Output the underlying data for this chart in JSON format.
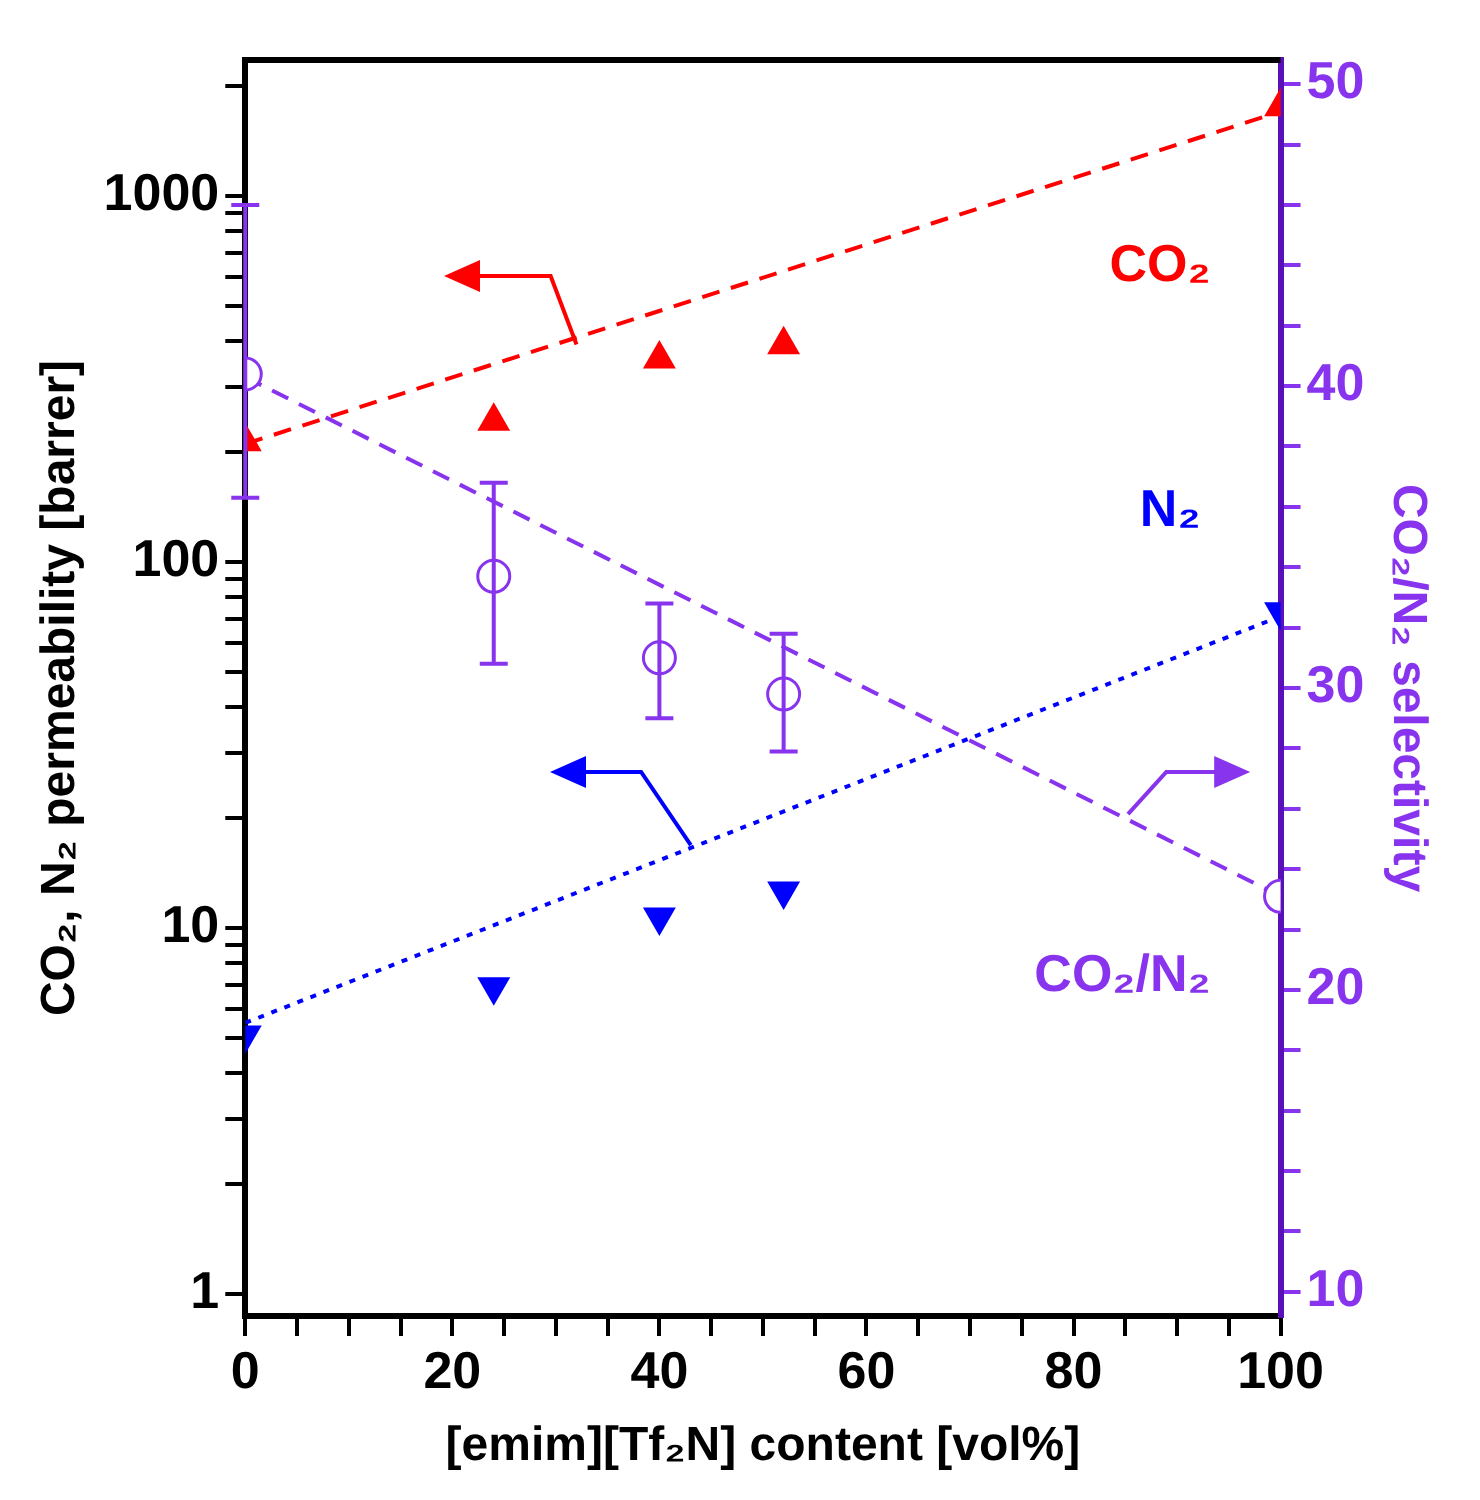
{
  "chart_data": {
    "type": "scatter",
    "xlabel": "[emim][Tf₂N] content [vol%]",
    "ylabel": "CO₂, N₂ permeability [barrer]",
    "y2label": "CO₂/N₂ selectivity",
    "xlim": [
      0,
      100
    ],
    "xticks": [
      0,
      {
        "value": 5,
        "label": null
      },
      {
        "value": 10,
        "label": null
      },
      {
        "value": 15,
        "label": null
      },
      20,
      {
        "value": 25,
        "label": null
      },
      {
        "value": 30,
        "label": null
      },
      {
        "value": 35,
        "label": null
      },
      40,
      {
        "value": 45,
        "label": null
      },
      {
        "value": 50,
        "label": null
      },
      {
        "value": 55,
        "label": null
      },
      60,
      {
        "value": 65,
        "label": null
      },
      {
        "value": 70,
        "label": null
      },
      {
        "value": 75,
        "label": null
      },
      80,
      {
        "value": 85,
        "label": null
      },
      {
        "value": 90,
        "label": null
      },
      {
        "value": 95,
        "label": null
      },
      100
    ],
    "ylim": [
      0.87,
      2350
    ],
    "yticks": [
      1,
      {
        "value": 2,
        "label": null
      },
      {
        "value": 3,
        "label": null
      },
      {
        "value": 4,
        "label": null
      },
      {
        "value": 5,
        "label": null
      },
      {
        "value": 6,
        "label": null
      },
      {
        "value": 7,
        "label": null
      },
      {
        "value": 8,
        "label": null
      },
      {
        "value": 9,
        "label": null
      },
      10,
      {
        "value": 20,
        "label": null
      },
      {
        "value": 30,
        "label": null
      },
      {
        "value": 40,
        "label": null
      },
      {
        "value": 50,
        "label": null
      },
      {
        "value": 60,
        "label": null
      },
      {
        "value": 70,
        "label": null
      },
      {
        "value": 80,
        "label": null
      },
      {
        "value": 90,
        "label": null
      },
      100,
      {
        "value": 200,
        "label": null
      },
      {
        "value": 300,
        "label": null
      },
      {
        "value": 400,
        "label": null
      },
      {
        "value": 500,
        "label": null
      },
      {
        "value": 600,
        "label": null
      },
      {
        "value": 700,
        "label": null
      },
      {
        "value": 800,
        "label": null
      },
      {
        "value": 900,
        "label": null
      },
      1000,
      {
        "value": 2000,
        "label": null
      }
    ],
    "y2lim": [
      9.2,
      50.8
    ],
    "y2ticks": [
      10,
      {
        "value": 12,
        "label": null
      },
      {
        "value": 14,
        "label": null
      },
      {
        "value": 16,
        "label": null
      },
      {
        "value": 18,
        "label": null
      },
      20,
      {
        "value": 22,
        "label": null
      },
      {
        "value": 24,
        "label": null
      },
      {
        "value": 26,
        "label": null
      },
      {
        "value": 28,
        "label": null
      },
      30,
      {
        "value": 32,
        "label": null
      },
      {
        "value": 34,
        "label": null
      },
      {
        "value": 36,
        "label": null
      },
      {
        "value": 38,
        "label": null
      },
      40,
      {
        "value": 42,
        "label": null
      },
      {
        "value": 44,
        "label": null
      },
      {
        "value": 46,
        "label": null
      },
      {
        "value": 48,
        "label": null
      },
      50
    ],
    "log": "y",
    "grid": false,
    "legend": false,
    "series": [
      {
        "name": "CO₂",
        "type": "scatter",
        "marker": "triangle",
        "color": "#ff0000",
        "x": [
          0,
          24,
          40,
          52,
          100
        ],
        "values": [
          213,
          242,
          358,
          392,
          1750
        ]
      },
      {
        "name": "N₂",
        "type": "scatter",
        "marker": "triangle-down",
        "color": "#0000ff",
        "x": [
          0,
          24,
          40,
          52,
          100
        ],
        "values": [
          5.1,
          6.9,
          10.7,
          12.6,
          73
        ]
      },
      {
        "name": "CO₂/N₂",
        "type": "scatter",
        "marker": "circle",
        "axis": "y2",
        "color": "#8833ee",
        "x": [
          0,
          24,
          40,
          52,
          100
        ],
        "values": [
          40.4,
          33.7,
          31.0,
          29.8,
          23.1
        ],
        "errors": [
          [
            36.3,
            46.0
          ],
          [
            30.8,
            36.8
          ],
          [
            29.0,
            32.8
          ],
          [
            27.9,
            31.8
          ],
          null
        ]
      },
      {
        "type": "line",
        "line_style": "dashed",
        "marker": "none",
        "color": "#ff0000",
        "x": [
          0,
          100
        ],
        "values": [
          210,
          1700
        ]
      },
      {
        "type": "line",
        "line_style": "dotted",
        "marker": "none",
        "color": "#0000ff",
        "x": [
          0,
          100
        ],
        "values": [
          5.5,
          71
        ]
      },
      {
        "type": "line",
        "line_style": "dashed",
        "marker": "none",
        "axis": "y2",
        "color": "#8833ee",
        "x": [
          0,
          100
        ],
        "values": [
          40.3,
          23.1
        ]
      }
    ]
  }
}
